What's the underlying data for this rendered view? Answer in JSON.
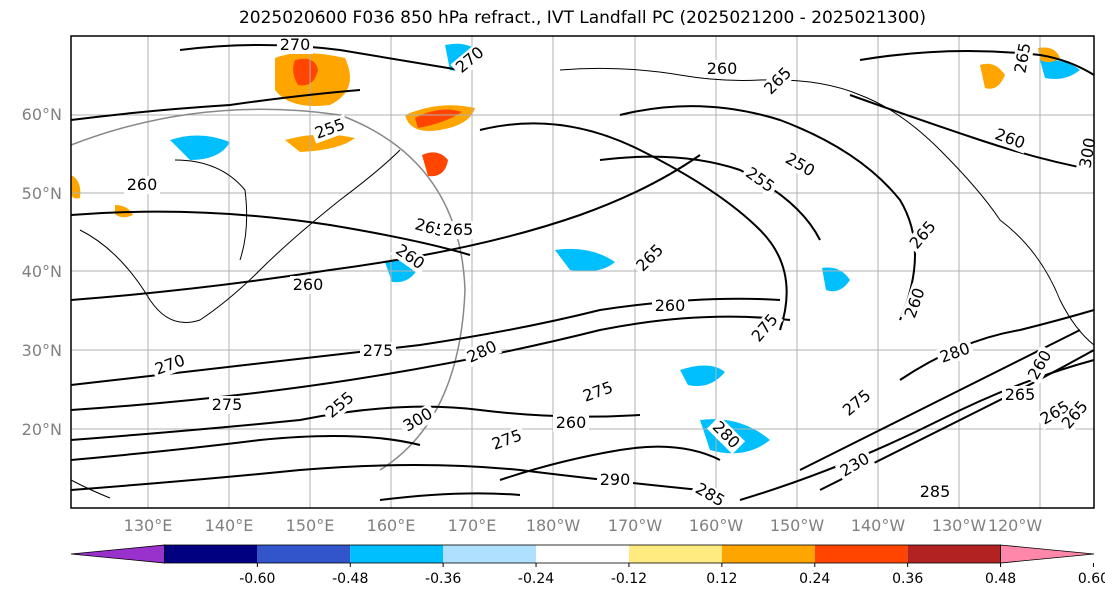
{
  "title": "2025020600 F036 850 hPa refract., IVT Landfall PC (2025021200 - 2025021300)",
  "lat_labels": [
    "60°N",
    "50°N",
    "40°N",
    "30°N",
    "20°N"
  ],
  "lon_labels": [
    "130°E",
    "140°E",
    "150°E",
    "160°E",
    "170°E",
    "180°W",
    "170°W",
    "160°W",
    "150°W",
    "140°W",
    "130°W",
    "120°W"
  ],
  "contour_labels": [
    "270",
    "270",
    "260",
    "265",
    "255",
    "265",
    "260",
    "265",
    "250",
    "255",
    "260",
    "265",
    "260",
    "265",
    "260",
    "270",
    "275",
    "280",
    "275",
    "260",
    "265",
    "275",
    "280",
    "275",
    "275",
    "300",
    "260",
    "275",
    "280",
    "285",
    "290",
    "300",
    "260",
    "265",
    "265",
    "230",
    "285",
    "255",
    "260",
    "265"
  ],
  "colorbar": {
    "labels": [
      "-0.60",
      "-0.48",
      "-0.36",
      "-0.24",
      "-0.12",
      "0.12",
      "0.24",
      "0.36",
      "0.48",
      "0.60"
    ],
    "colors": [
      "#9932cc",
      "#000080",
      "#3355cc",
      "#00bfff",
      "#b0e0ff",
      "#ffffff",
      "#ffeb80",
      "#ffa500",
      "#ff4500",
      "#b22222",
      "#ff88aa"
    ]
  }
}
